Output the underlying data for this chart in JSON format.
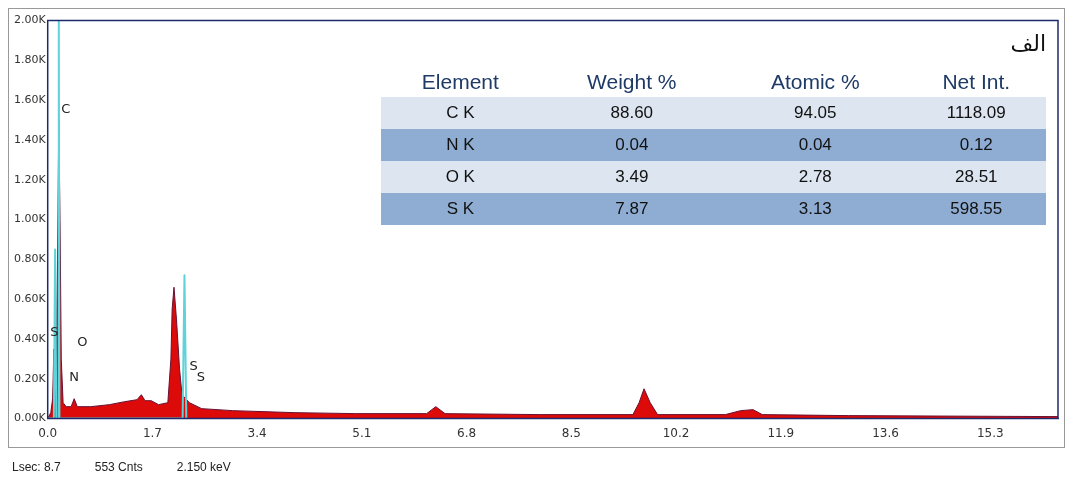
{
  "chart_data": {
    "type": "area",
    "title": "الف",
    "xlim": [
      0,
      16.4
    ],
    "xticks": [
      {
        "value": 0,
        "label": "0.0"
      },
      1.7,
      3.4,
      5.1,
      6.8,
      8.5,
      10.2,
      11.9,
      13.6,
      15.3
    ],
    "ylim": [
      0,
      2000
    ],
    "yticks": [
      {
        "value": 0,
        "label": "0.00K"
      },
      {
        "value": 200,
        "label": "0.20K"
      },
      {
        "value": 400,
        "label": "0.40K"
      },
      {
        "value": 600,
        "label": "0.60K"
      },
      {
        "value": 800,
        "label": "0.80K"
      },
      {
        "value": 1000,
        "label": "1.00K"
      },
      {
        "value": 1200,
        "label": "1.20K"
      },
      {
        "value": 1400,
        "label": "1.40K"
      },
      {
        "value": 1600,
        "label": "1.60K"
      },
      {
        "value": 1800,
        "label": "1.80K"
      },
      {
        "value": 2000,
        "label": "2.00K"
      }
    ],
    "grid": false,
    "legend": false,
    "series": [
      {
        "color": "#dd0a0a",
        "x": [
          0,
          0.05,
          0.08,
          0.1,
          0.12,
          0.14,
          0.16,
          0.18,
          0.2,
          0.22,
          0.25,
          0.3,
          0.38,
          0.43,
          0.48,
          0.7,
          1.0,
          1.25,
          1.45,
          1.52,
          1.58,
          1.68,
          1.8,
          1.95,
          2.0,
          2.02,
          2.05,
          2.09,
          2.14,
          2.18,
          2.3,
          2.5,
          3.0,
          4,
          5,
          6.15,
          6.3,
          6.45,
          8,
          9.5,
          9.6,
          9.68,
          9.78,
          9.9,
          11,
          11.25,
          11.45,
          11.6,
          13,
          16.4
        ],
        "values": [
          0,
          30,
          100,
          350,
          150,
          300,
          800,
          1500,
          1000,
          300,
          80,
          60,
          60,
          100,
          60,
          60,
          70,
          85,
          95,
          120,
          90,
          90,
          70,
          80,
          300,
          550,
          660,
          500,
          250,
          120,
          80,
          50,
          40,
          30,
          25,
          25,
          60,
          25,
          20,
          20,
          80,
          150,
          80,
          20,
          20,
          40,
          45,
          20,
          15,
          10
        ]
      },
      {
        "type": "line",
        "color": "#5fd3d9",
        "x": [
          0,
          0.1,
          0.12,
          0.14,
          0.17,
          0.18,
          0.19,
          2.19,
          2.22,
          2.25
        ],
        "values": [
          0,
          0,
          850,
          0,
          0,
          2000,
          0,
          0,
          720,
          0
        ]
      }
    ],
    "annotations": [
      "Element",
      "Weight %",
      "Atomic %",
      "Net Int.",
      "C K",
      "88.60",
      "94.05",
      "1118.09",
      "N K",
      "0.04",
      "0.04",
      "0.12",
      "O K",
      "3.49",
      "2.78",
      "28.51",
      "S K",
      "7.87",
      "3.13",
      "598.55",
      "Lsec: 8.7",
      "553 Cnts",
      "2.150 keV",
      "C",
      "S",
      "O",
      "N",
      "S",
      "S"
    ]
  }
}
